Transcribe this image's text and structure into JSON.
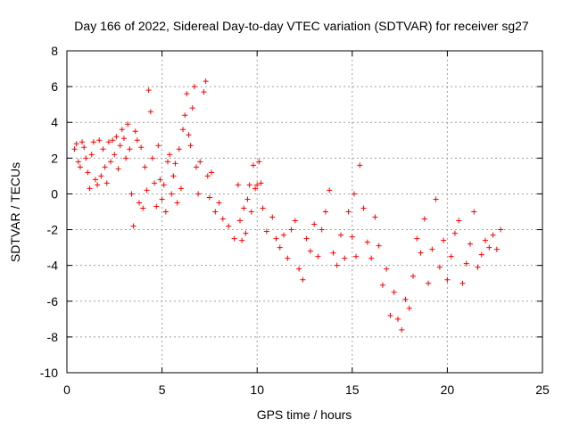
{
  "chart_data": {
    "type": "scatter",
    "title": "Day 166 of 2022, Sidereal Day-to-day VTEC variation (SDTVAR) for receiver sg27",
    "xlabel": "GPS time / hours",
    "ylabel": "SDTVAR / TECUs",
    "xlim": [
      0,
      25
    ],
    "ylim": [
      -10,
      8
    ],
    "xticks": [
      0,
      5,
      10,
      15,
      20,
      25
    ],
    "yticks": [
      -10,
      -8,
      -6,
      -4,
      -2,
      0,
      2,
      4,
      6,
      8
    ],
    "grid": true,
    "marker": "+",
    "color": "#ff0000",
    "series": [
      {
        "name": "SDTVAR",
        "x": [
          0.4,
          0.5,
          0.6,
          0.7,
          0.8,
          0.9,
          1.0,
          1.1,
          1.2,
          1.3,
          1.4,
          1.5,
          1.6,
          1.7,
          1.8,
          1.9,
          2.0,
          2.1,
          2.2,
          2.3,
          2.4,
          2.5,
          2.6,
          2.7,
          2.8,
          2.9,
          3.0,
          3.1,
          3.2,
          3.3,
          3.4,
          3.5,
          3.6,
          3.7,
          3.8,
          3.9,
          4.0,
          4.1,
          4.2,
          4.3,
          4.4,
          4.5,
          4.6,
          4.7,
          4.8,
          4.9,
          5.0,
          5.1,
          5.2,
          5.3,
          5.4,
          5.5,
          5.6,
          5.7,
          5.8,
          5.9,
          6.0,
          6.1,
          6.2,
          6.3,
          6.4,
          6.5,
          6.6,
          6.7,
          6.8,
          6.9,
          7.0,
          7.2,
          7.3,
          7.4,
          7.5,
          7.6,
          7.8,
          8.0,
          8.2,
          8.5,
          8.8,
          9.0,
          9.1,
          9.2,
          9.3,
          9.4,
          9.5,
          9.6,
          9.7,
          9.8,
          9.9,
          10.0,
          10.1,
          10.2,
          10.3,
          10.5,
          10.8,
          11.0,
          11.2,
          11.4,
          11.6,
          11.8,
          12.0,
          12.2,
          12.4,
          12.6,
          12.8,
          13.0,
          13.2,
          13.4,
          13.6,
          13.8,
          14.0,
          14.2,
          14.4,
          14.6,
          14.8,
          15.0,
          15.1,
          15.2,
          15.4,
          15.6,
          15.8,
          16.0,
          16.2,
          16.4,
          16.6,
          16.8,
          17.0,
          17.2,
          17.4,
          17.6,
          17.8,
          18.0,
          18.2,
          18.4,
          18.6,
          18.8,
          19.0,
          19.2,
          19.4,
          19.6,
          19.8,
          20.0,
          20.2,
          20.4,
          20.6,
          20.8,
          21.0,
          21.2,
          21.4,
          21.6,
          21.8,
          22.0,
          22.2,
          22.4,
          22.6,
          22.8
        ],
        "y": [
          2.5,
          2.8,
          1.8,
          1.5,
          2.9,
          2.6,
          2.0,
          1.2,
          0.3,
          2.2,
          2.9,
          0.8,
          0.5,
          3.0,
          1.0,
          2.5,
          1.5,
          0.6,
          2.9,
          1.8,
          3.0,
          2.2,
          3.2,
          1.4,
          2.7,
          3.6,
          3.1,
          2.0,
          3.9,
          2.5,
          0.0,
          -1.8,
          3.5,
          3.0,
          -0.5,
          2.6,
          -0.8,
          1.5,
          0.2,
          5.8,
          4.6,
          2.0,
          0.6,
          -0.7,
          2.7,
          0.8,
          -0.3,
          0.5,
          -1.0,
          1.8,
          2.2,
          0.0,
          1.0,
          1.7,
          -0.5,
          2.5,
          0.3,
          3.6,
          4.4,
          5.6,
          3.3,
          2.7,
          4.8,
          6.0,
          1.5,
          0.0,
          1.8,
          5.7,
          6.3,
          1.0,
          -0.2,
          1.2,
          -1.0,
          -0.5,
          -1.4,
          -1.8,
          -2.5,
          0.5,
          -1.5,
          -2.6,
          -0.8,
          -2.2,
          -0.3,
          0.5,
          -1.0,
          1.6,
          0.3,
          0.5,
          1.8,
          0.6,
          -0.8,
          -2.1,
          -1.3,
          -2.5,
          -3.0,
          -2.3,
          -3.6,
          -2.0,
          -1.5,
          -4.2,
          -4.8,
          -2.5,
          -3.2,
          -1.7,
          -3.5,
          -2.0,
          -1.0,
          0.2,
          -3.3,
          -4.0,
          -2.3,
          -3.6,
          -1.0,
          -2.4,
          0.0,
          -3.5,
          1.6,
          -0.8,
          -2.7,
          -3.6,
          -1.3,
          -2.9,
          -5.1,
          -4.2,
          -6.8,
          -5.5,
          -7.0,
          -7.6,
          -5.9,
          -6.4,
          -4.6,
          -2.5,
          -3.3,
          -1.4,
          -5.0,
          -3.1,
          -0.3,
          -4.1,
          -2.6,
          -4.8,
          -3.5,
          -2.2,
          -1.5,
          -5.0,
          -3.9,
          -2.8,
          -1.0,
          -4.1,
          -3.4,
          -2.6,
          -3.0,
          -2.3,
          -3.1,
          -2.0
        ]
      }
    ]
  }
}
